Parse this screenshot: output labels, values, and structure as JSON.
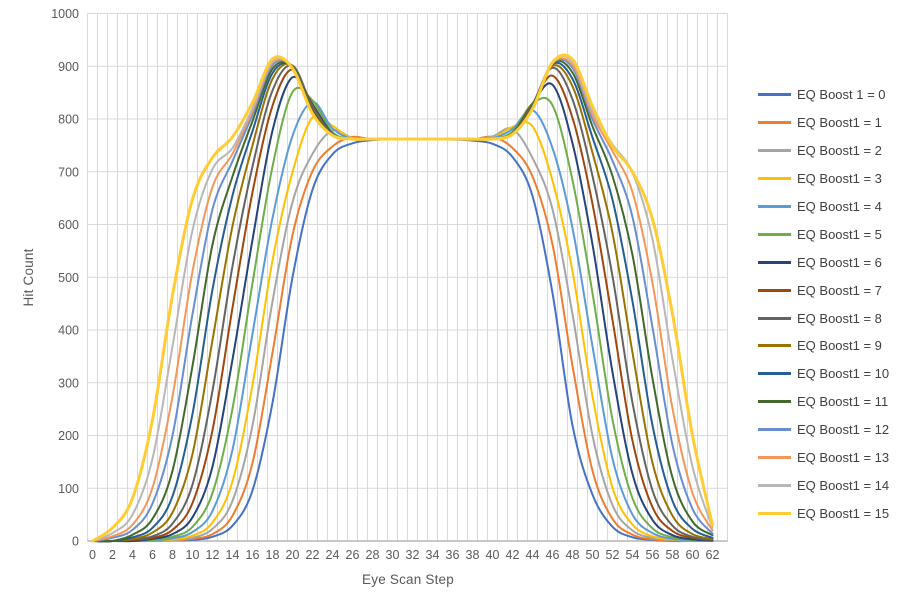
{
  "chart_data": {
    "type": "line",
    "title": "",
    "xlabel": "Eye Scan Step",
    "ylabel": "Hit Count",
    "x_start": 0,
    "x_step": 2,
    "x_ticks": [
      0,
      2,
      4,
      6,
      8,
      10,
      12,
      14,
      16,
      18,
      20,
      22,
      24,
      26,
      28,
      30,
      32,
      34,
      36,
      38,
      40,
      42,
      44,
      46,
      48,
      50,
      52,
      54,
      56,
      58,
      60,
      62
    ],
    "y_ticks": [
      0,
      100,
      200,
      300,
      400,
      500,
      600,
      700,
      800,
      900,
      1000
    ],
    "ylim": [
      0,
      1000
    ],
    "xlim_categories": [
      0,
      63
    ],
    "grid": "both",
    "legend_position": "right",
    "series": [
      {
        "name": "EQ Boost 1 = 0",
        "color": "#4472C4",
        "line_width": 2,
        "values": [
          0,
          0,
          0,
          0,
          1,
          2,
          8,
          29,
          96,
          262,
          500,
          666,
          733,
          754,
          760,
          762,
          762,
          762,
          761,
          759,
          753,
          728,
          654,
          470,
          219,
          88,
          27,
          7,
          2,
          0,
          0,
          0
        ]
      },
      {
        "name": "EQ Boost1 = 1",
        "color": "#ED7D31",
        "line_width": 2,
        "values": [
          0,
          0,
          0,
          0,
          1,
          4,
          13,
          48,
          148,
          357,
          580,
          701,
          748,
          766,
          761,
          762,
          762,
          762,
          762,
          761,
          766,
          745,
          691,
          562,
          332,
          133,
          42,
          12,
          3,
          1,
          0,
          0
        ]
      },
      {
        "name": "EQ Boost1 = 2",
        "color": "#A5A5A5",
        "line_width": 2,
        "values": [
          0,
          0,
          0,
          0,
          2,
          6,
          23,
          76,
          219,
          454,
          642,
          734,
          778,
          764,
          761,
          762,
          762,
          762,
          762,
          761,
          767,
          781,
          726,
          629,
          430,
          200,
          68,
          20,
          6,
          2,
          0,
          0
        ]
      },
      {
        "name": "EQ Boost1 = 3",
        "color": "#FFC000",
        "line_width": 2,
        "values": [
          0,
          0,
          0,
          1,
          3,
          10,
          35,
          113,
          296,
          532,
          699,
          803,
          787,
          762,
          762,
          762,
          762,
          762,
          762,
          761,
          763,
          785,
          786,
          683,
          511,
          274,
          101,
          31,
          9,
          3,
          1,
          0
        ]
      },
      {
        "name": "EQ Boost1 = 4",
        "color": "#5B9BD5",
        "line_width": 2,
        "values": [
          0,
          0,
          0,
          1,
          5,
          17,
          57,
          173,
          393,
          612,
          768,
          832,
          782,
          762,
          762,
          762,
          762,
          762,
          762,
          762,
          763,
          781,
          817,
          745,
          593,
          369,
          156,
          50,
          15,
          4,
          1,
          0
        ]
      },
      {
        "name": "EQ Boost1 = 5",
        "color": "#70AD47",
        "line_width": 2,
        "values": [
          0,
          0,
          0,
          2,
          8,
          27,
          91,
          251,
          489,
          710,
          851,
          835,
          775,
          762,
          762,
          762,
          762,
          762,
          762,
          762,
          762,
          776,
          829,
          826,
          684,
          470,
          230,
          81,
          24,
          7,
          2,
          1
        ]
      },
      {
        "name": "EQ Boost1 = 6",
        "color": "#264478",
        "line_width": 2,
        "values": [
          0,
          0,
          0,
          4,
          13,
          45,
          141,
          344,
          571,
          778,
          879,
          828,
          772,
          762,
          762,
          762,
          762,
          762,
          762,
          762,
          762,
          773,
          829,
          865,
          754,
          562,
          320,
          127,
          40,
          11,
          3,
          1
        ]
      },
      {
        "name": "EQ Boost1 = 7",
        "color": "#9E480E",
        "line_width": 2,
        "values": [
          0,
          0,
          2,
          6,
          21,
          72,
          210,
          442,
          661,
          825,
          894,
          825,
          771,
          762,
          762,
          762,
          762,
          762,
          762,
          762,
          762,
          773,
          829,
          882,
          802,
          639,
          419,
          190,
          64,
          19,
          6,
          2
        ]
      },
      {
        "name": "EQ Boost1 = 8",
        "color": "#636363",
        "line_width": 2,
        "values": [
          0,
          0,
          3,
          9,
          33,
          107,
          285,
          521,
          710,
          854,
          901,
          823,
          771,
          762,
          762,
          762,
          762,
          762,
          762,
          762,
          762,
          773,
          828,
          897,
          837,
          692,
          502,
          262,
          96,
          29,
          8,
          2
        ]
      },
      {
        "name": "EQ Boost1 = 9",
        "color": "#997300",
        "line_width": 2,
        "values": [
          0,
          0,
          4,
          16,
          54,
          165,
          381,
          597,
          750,
          876,
          901,
          818,
          770,
          762,
          762,
          762,
          762,
          762,
          762,
          762,
          762,
          772,
          825,
          901,
          862,
          736,
          584,
          357,
          148,
          48,
          13,
          4
        ]
      },
      {
        "name": "EQ Boost1 = 10",
        "color": "#255E91",
        "line_width": 2,
        "values": [
          0,
          0,
          7,
          25,
          85,
          241,
          477,
          655,
          777,
          887,
          900,
          816,
          770,
          762,
          762,
          762,
          762,
          762,
          762,
          762,
          762,
          772,
          824,
          904,
          876,
          765,
          647,
          454,
          219,
          76,
          23,
          6
        ]
      },
      {
        "name": "EQ Boost1 = 11",
        "color": "#43682B",
        "line_width": 2,
        "values": [
          0,
          0,
          12,
          42,
          133,
          332,
          562,
          691,
          796,
          895,
          899,
          816,
          770,
          762,
          762,
          762,
          762,
          762,
          762,
          762,
          762,
          772,
          824,
          906,
          888,
          786,
          692,
          542,
          308,
          120,
          37,
          11
        ]
      },
      {
        "name": "EQ Boost1 = 12",
        "color": "#698ED0",
        "line_width": 2,
        "values": [
          0,
          6,
          21,
          71,
          200,
          430,
          629,
          720,
          808,
          902,
          898,
          812,
          769,
          762,
          762,
          762,
          762,
          762,
          762,
          762,
          762,
          771,
          821,
          906,
          897,
          799,
          721,
          614,
          405,
          182,
          61,
          14
        ]
      },
      {
        "name": "EQ Boost1 = 13",
        "color": "#F1975A",
        "line_width": 2,
        "values": [
          0,
          9,
          31,
          101,
          274,
          511,
          671,
          734,
          815,
          906,
          897,
          811,
          769,
          762,
          762,
          762,
          762,
          762,
          762,
          762,
          762,
          771,
          820,
          906,
          902,
          807,
          739,
          661,
          489,
          251,
          91,
          20
        ]
      },
      {
        "name": "EQ Boost1 = 14",
        "color": "#B7B7B7",
        "line_width": 2,
        "values": [
          0,
          15,
          50,
          156,
          369,
          589,
          705,
          745,
          820,
          909,
          897,
          810,
          768,
          762,
          762,
          762,
          762,
          762,
          762,
          762,
          762,
          771,
          819,
          909,
          908,
          814,
          752,
          698,
          572,
          344,
          141,
          25
        ]
      },
      {
        "name": "EQ Boost1 = 15",
        "color": "#FFCD33",
        "line_width": 3,
        "values": [
          0,
          25,
          81,
          230,
          466,
          648,
          727,
          766,
          831,
          914,
          896,
          810,
          769,
          762,
          762,
          762,
          762,
          762,
          762,
          762,
          762,
          771,
          819,
          907,
          913,
          824,
          748,
          700,
          610,
          430,
          200,
          30
        ]
      }
    ]
  },
  "layout_colors": {
    "background": "#FFFFFF",
    "gridline": "#D9D9D9",
    "axis_line": "#A6A6A6",
    "tick_text": "#595959",
    "axis_title_text": "#595959",
    "legend_text": "#404040"
  }
}
